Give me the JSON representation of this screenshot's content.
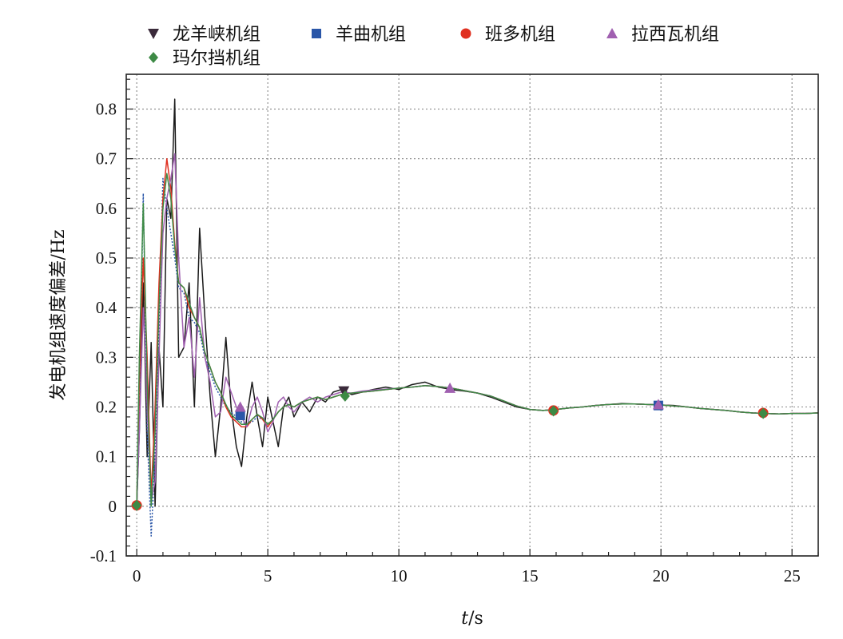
{
  "chart_data": {
    "type": "line",
    "xlabel_italic": "t",
    "xlabel_rest": "/s",
    "ylabel": "发电机组速度偏差/Hz",
    "xlim": [
      -0.4,
      26
    ],
    "ylim": [
      -0.1,
      0.87
    ],
    "xticks": [
      0,
      5,
      10,
      15,
      20,
      25
    ],
    "yticks": [
      -0.1,
      0,
      0.1,
      0.2,
      0.3,
      0.4,
      0.5,
      0.6,
      0.7,
      0.8
    ],
    "ytick_labels": [
      "-0.1",
      "0",
      "0.1",
      "0.2",
      "0.3",
      "0.4",
      "0.5",
      "0.6",
      "0.7",
      "0.8"
    ],
    "grid": true,
    "legend_position": "top",
    "series": [
      {
        "name": "龙羊峡机组",
        "color": "#1a1a1a",
        "marker": "triangle-down",
        "marker_color": "#3a2a3a",
        "dash": "solid",
        "x": [
          0,
          0.1,
          0.25,
          0.4,
          0.55,
          0.7,
          0.85,
          1.0,
          1.15,
          1.3,
          1.45,
          1.6,
          1.8,
          2.0,
          2.2,
          2.4,
          2.6,
          2.8,
          3.0,
          3.2,
          3.4,
          3.6,
          3.8,
          4.0,
          4.2,
          4.4,
          4.6,
          4.8,
          5.0,
          5.2,
          5.4,
          5.6,
          5.8,
          6.0,
          6.3,
          6.6,
          6.9,
          7.2,
          7.5,
          7.8,
          8.2,
          8.6,
          9.0,
          9.5,
          10.0,
          10.5,
          11.0,
          11.5,
          12.0,
          12.5,
          13.0,
          13.5,
          14.0,
          14.5,
          15.0,
          15.5,
          16.0,
          16.5,
          17.0,
          17.5,
          18.0,
          18.5,
          19.0,
          19.5,
          20.0,
          20.5,
          21.0,
          21.5,
          22.0,
          22.5,
          23.0,
          23.5,
          24.0,
          24.5,
          25.0,
          25.5,
          26.0
        ],
        "y": [
          0,
          0.15,
          0.45,
          0.1,
          0.33,
          0.0,
          0.32,
          0.2,
          0.62,
          0.58,
          0.82,
          0.3,
          0.32,
          0.45,
          0.2,
          0.56,
          0.38,
          0.22,
          0.1,
          0.2,
          0.34,
          0.2,
          0.12,
          0.08,
          0.18,
          0.25,
          0.18,
          0.12,
          0.22,
          0.17,
          0.12,
          0.2,
          0.22,
          0.18,
          0.21,
          0.19,
          0.22,
          0.21,
          0.23,
          0.235,
          0.225,
          0.23,
          0.235,
          0.24,
          0.235,
          0.245,
          0.25,
          0.24,
          0.235,
          0.232,
          0.228,
          0.22,
          0.21,
          0.2,
          0.195,
          0.193,
          0.195,
          0.198,
          0.2,
          0.203,
          0.205,
          0.207,
          0.206,
          0.205,
          0.204,
          0.203,
          0.2,
          0.197,
          0.195,
          0.193,
          0.19,
          0.188,
          0.187,
          0.186,
          0.187,
          0.187,
          0.188
        ],
        "markers_x": [
          7.9
        ],
        "markers_y": [
          0.232
        ]
      },
      {
        "name": "羊曲机组",
        "color": "#2a56a8",
        "marker": "square",
        "marker_color": "#2a56a8",
        "dash": "dotted",
        "x": [
          0,
          0.1,
          0.25,
          0.4,
          0.55,
          0.7,
          0.85,
          1.0,
          1.15,
          1.3,
          1.45,
          1.6,
          1.8,
          2.0,
          2.2,
          2.4,
          2.6,
          2.8,
          3.0,
          3.2,
          3.4,
          3.6,
          3.8,
          4.0,
          4.2,
          4.4,
          4.6,
          4.8,
          5.0,
          5.2,
          5.4,
          5.6,
          5.8,
          6.0,
          6.3,
          6.6,
          6.9,
          7.2,
          7.5,
          7.8,
          8.2,
          8.6,
          9.0,
          9.5,
          10.0,
          10.5,
          11.0,
          11.5,
          12.0,
          12.5,
          13.0,
          13.5,
          14.0,
          14.5,
          15.0,
          15.5,
          16.0,
          16.5,
          17.0,
          17.5,
          18.0,
          18.5,
          19.0,
          19.5,
          20.0,
          20.5,
          21.0,
          21.5,
          22.0,
          22.5,
          23.0,
          23.5,
          24.0,
          24.5,
          25.0,
          25.5,
          26.0
        ],
        "y": [
          0,
          0.2,
          0.63,
          0.15,
          -0.06,
          0.1,
          0.35,
          0.66,
          0.6,
          0.55,
          0.5,
          0.44,
          0.43,
          0.38,
          0.37,
          0.35,
          0.3,
          0.27,
          0.24,
          0.22,
          0.2,
          0.19,
          0.18,
          0.17,
          0.165,
          0.17,
          0.18,
          0.175,
          0.16,
          0.175,
          0.19,
          0.2,
          0.205,
          0.2,
          0.21,
          0.215,
          0.22,
          0.215,
          0.22,
          0.225,
          0.228,
          0.23,
          0.232,
          0.235,
          0.238,
          0.24,
          0.243,
          0.241,
          0.238,
          0.233,
          0.228,
          0.222,
          0.212,
          0.202,
          0.195,
          0.193,
          0.195,
          0.198,
          0.2,
          0.203,
          0.205,
          0.206,
          0.206,
          0.205,
          0.204,
          0.202,
          0.2,
          0.197,
          0.195,
          0.193,
          0.19,
          0.188,
          0.187,
          0.186,
          0.187,
          0.187,
          0.188
        ],
        "markers_x": [
          3.95,
          19.9
        ],
        "markers_y": [
          0.183,
          0.203
        ]
      },
      {
        "name": "班多机组",
        "color": "#e03020",
        "marker": "circle",
        "marker_color": "#e03020",
        "dash": "solid",
        "x": [
          0,
          0.1,
          0.25,
          0.4,
          0.55,
          0.7,
          0.85,
          1.0,
          1.15,
          1.3,
          1.45,
          1.6,
          1.8,
          2.0,
          2.2,
          2.4,
          2.6,
          2.8,
          3.0,
          3.2,
          3.4,
          3.6,
          3.8,
          4.0,
          4.2,
          4.4,
          4.6,
          4.8,
          5.0,
          5.2,
          5.4,
          5.6,
          5.8,
          6.0,
          6.3,
          6.6,
          6.9,
          7.2,
          7.5,
          7.8,
          8.2,
          8.6,
          9.0,
          9.5,
          10.0,
          10.5,
          11.0,
          11.5,
          12.0,
          12.5,
          13.0,
          13.5,
          14.0,
          14.5,
          15.0,
          15.5,
          16.0,
          16.5,
          17.0,
          17.5,
          18.0,
          18.5,
          19.0,
          19.5,
          20.0,
          20.5,
          21.0,
          21.5,
          22.0,
          22.5,
          23.0,
          23.5,
          24.0,
          24.5,
          25.0,
          25.5,
          26.0
        ],
        "y": [
          0,
          0.25,
          0.5,
          0.3,
          0.02,
          0.2,
          0.45,
          0.62,
          0.7,
          0.64,
          0.53,
          0.45,
          0.44,
          0.4,
          0.38,
          0.36,
          0.31,
          0.28,
          0.25,
          0.23,
          0.2,
          0.18,
          0.17,
          0.16,
          0.16,
          0.175,
          0.185,
          0.175,
          0.16,
          0.175,
          0.19,
          0.2,
          0.205,
          0.2,
          0.21,
          0.215,
          0.22,
          0.215,
          0.22,
          0.225,
          0.228,
          0.23,
          0.232,
          0.235,
          0.238,
          0.24,
          0.243,
          0.241,
          0.238,
          0.233,
          0.228,
          0.222,
          0.212,
          0.202,
          0.195,
          0.193,
          0.195,
          0.198,
          0.2,
          0.203,
          0.205,
          0.206,
          0.206,
          0.205,
          0.204,
          0.202,
          0.2,
          0.197,
          0.195,
          0.193,
          0.19,
          0.188,
          0.187,
          0.186,
          0.187,
          0.187,
          0.188
        ],
        "markers_x": [
          0,
          15.9,
          23.9
        ],
        "markers_y": [
          0.002,
          0.193,
          0.188
        ]
      },
      {
        "name": "拉西瓦机组",
        "color": "#a060b0",
        "marker": "triangle-up",
        "marker_color": "#a060b0",
        "dash": "solid",
        "x": [
          0,
          0.1,
          0.25,
          0.4,
          0.55,
          0.7,
          0.85,
          1.0,
          1.15,
          1.3,
          1.45,
          1.6,
          1.8,
          2.0,
          2.2,
          2.4,
          2.6,
          2.8,
          3.0,
          3.2,
          3.4,
          3.6,
          3.8,
          4.0,
          4.2,
          4.4,
          4.6,
          4.8,
          5.0,
          5.2,
          5.4,
          5.6,
          5.8,
          6.0,
          6.3,
          6.6,
          6.9,
          7.2,
          7.5,
          7.8,
          8.2,
          8.6,
          9.0,
          9.5,
          10.0,
          10.5,
          11.0,
          11.5,
          12.0,
          12.5,
          13.0,
          13.5,
          14.0,
          14.5,
          15.0,
          15.5,
          16.0,
          16.5,
          17.0,
          17.5,
          18.0,
          18.5,
          19.0,
          19.5,
          20.0,
          20.5,
          21.0,
          21.5,
          22.0,
          22.5,
          23.0,
          23.5,
          24.0,
          24.5,
          25.0,
          25.5,
          26.0
        ],
        "y": [
          0,
          0.15,
          0.4,
          0.2,
          0.01,
          0.05,
          0.3,
          0.55,
          0.62,
          0.66,
          0.71,
          0.5,
          0.32,
          0.38,
          0.26,
          0.42,
          0.3,
          0.25,
          0.18,
          0.19,
          0.26,
          0.23,
          0.2,
          0.18,
          0.16,
          0.2,
          0.22,
          0.19,
          0.15,
          0.17,
          0.21,
          0.22,
          0.2,
          0.19,
          0.21,
          0.22,
          0.21,
          0.22,
          0.225,
          0.23,
          0.228,
          0.232,
          0.234,
          0.236,
          0.238,
          0.24,
          0.243,
          0.241,
          0.238,
          0.233,
          0.228,
          0.222,
          0.212,
          0.202,
          0.195,
          0.193,
          0.195,
          0.198,
          0.2,
          0.203,
          0.205,
          0.206,
          0.206,
          0.205,
          0.204,
          0.202,
          0.2,
          0.197,
          0.195,
          0.193,
          0.19,
          0.188,
          0.187,
          0.186,
          0.187,
          0.187,
          0.188
        ],
        "markers_x": [
          3.95,
          11.95,
          19.9
        ],
        "markers_y": [
          0.2,
          0.238,
          0.205
        ]
      },
      {
        "name": "玛尔挡机组",
        "color": "#3d8a45",
        "marker": "diamond",
        "marker_color": "#3d8a45",
        "dash": "solid",
        "x": [
          0,
          0.1,
          0.25,
          0.4,
          0.55,
          0.7,
          0.85,
          1.0,
          1.15,
          1.3,
          1.45,
          1.6,
          1.8,
          2.0,
          2.2,
          2.4,
          2.6,
          2.8,
          3.0,
          3.2,
          3.4,
          3.6,
          3.8,
          4.0,
          4.2,
          4.4,
          4.6,
          4.8,
          5.0,
          5.2,
          5.4,
          5.6,
          5.8,
          6.0,
          6.3,
          6.6,
          6.9,
          7.2,
          7.5,
          7.8,
          8.2,
          8.6,
          9.0,
          9.5,
          10.0,
          10.5,
          11.0,
          11.5,
          12.0,
          12.5,
          13.0,
          13.5,
          14.0,
          14.5,
          15.0,
          15.5,
          16.0,
          16.5,
          17.0,
          17.5,
          18.0,
          18.5,
          19.0,
          19.5,
          20.0,
          20.5,
          21.0,
          21.5,
          22.0,
          22.5,
          23.0,
          23.5,
          24.0,
          24.5,
          25.0,
          25.5,
          26.0
        ],
        "y": [
          0,
          0.3,
          0.61,
          0.25,
          0.0,
          0.15,
          0.4,
          0.6,
          0.67,
          0.62,
          0.52,
          0.45,
          0.44,
          0.41,
          0.38,
          0.36,
          0.31,
          0.28,
          0.25,
          0.23,
          0.205,
          0.185,
          0.175,
          0.165,
          0.165,
          0.175,
          0.185,
          0.178,
          0.165,
          0.175,
          0.19,
          0.2,
          0.205,
          0.2,
          0.21,
          0.215,
          0.22,
          0.215,
          0.22,
          0.225,
          0.228,
          0.23,
          0.232,
          0.235,
          0.238,
          0.24,
          0.243,
          0.241,
          0.238,
          0.233,
          0.228,
          0.222,
          0.212,
          0.202,
          0.195,
          0.193,
          0.195,
          0.198,
          0.2,
          0.203,
          0.205,
          0.206,
          0.206,
          0.205,
          0.204,
          0.202,
          0.2,
          0.197,
          0.195,
          0.193,
          0.19,
          0.188,
          0.187,
          0.186,
          0.187,
          0.187,
          0.188
        ],
        "markers_x": [
          0,
          7.95,
          15.9,
          23.9
        ],
        "markers_y": [
          0.002,
          0.222,
          0.192,
          0.187
        ]
      }
    ]
  }
}
